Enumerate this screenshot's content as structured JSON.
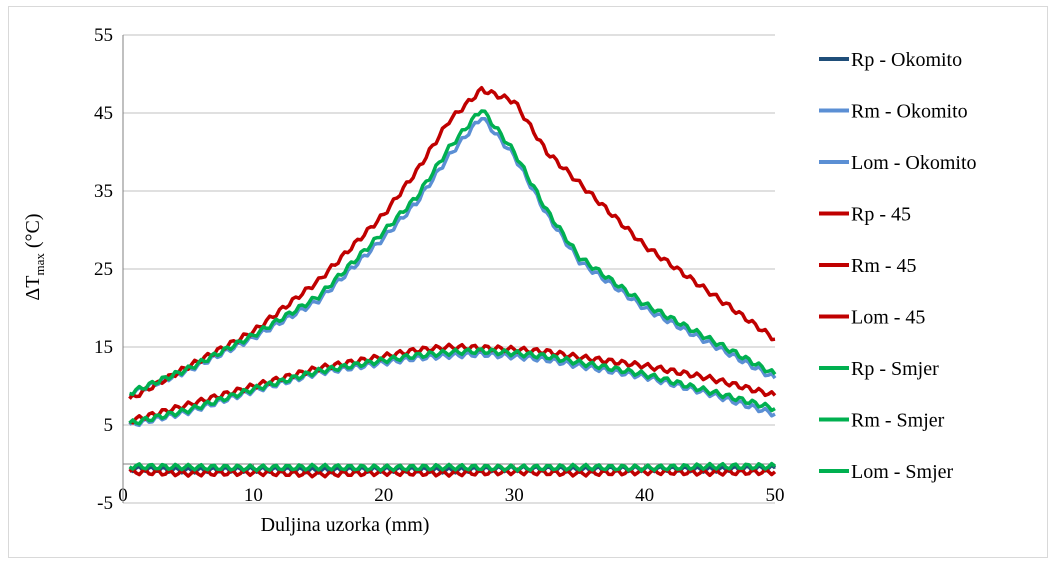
{
  "chart_data": {
    "type": "line",
    "xlabel": "Duljina uzorka (mm)",
    "ylabel": {
      "prefix": "ΔT",
      "sub": "max",
      "suffix": " (°C)"
    },
    "xlim": [
      0,
      50
    ],
    "ylim": [
      -5,
      55
    ],
    "xticks": [
      0,
      10,
      20,
      30,
      40,
      50
    ],
    "yticks": [
      -5,
      5,
      15,
      25,
      35,
      45,
      55
    ],
    "grid": "horizontal",
    "legend_position": "right",
    "series": [
      {
        "name": "Rp - Okomito",
        "color": "#1f4e79",
        "points": [
          [
            0.5,
            -0.6
          ],
          [
            5,
            -0.8
          ],
          [
            10,
            -0.7
          ],
          [
            15,
            -0.8
          ],
          [
            20,
            -0.7
          ],
          [
            25,
            -0.8
          ],
          [
            30,
            -0.6
          ],
          [
            35,
            -0.7
          ],
          [
            40,
            -0.6
          ],
          [
            45,
            -0.7
          ],
          [
            50,
            -0.5
          ]
        ]
      },
      {
        "name": "Rm - Okomito",
        "color": "#5b8fd4",
        "points": [
          [
            0.5,
            5.0
          ],
          [
            5,
            6.7
          ],
          [
            10,
            9.4
          ],
          [
            15,
            11.7
          ],
          [
            20,
            13.0
          ],
          [
            22.5,
            13.6
          ],
          [
            25,
            13.9
          ],
          [
            27.5,
            14.1
          ],
          [
            30,
            13.8
          ],
          [
            32.5,
            13.4
          ],
          [
            35,
            12.6
          ],
          [
            40,
            11.2
          ],
          [
            45,
            9.0
          ],
          [
            50,
            6.4
          ]
        ]
      },
      {
        "name": "Lom - Okomito",
        "color": "#5b8fd4",
        "points": [
          [
            0.5,
            9.0
          ],
          [
            5,
            12.0
          ],
          [
            10,
            16.2
          ],
          [
            15,
            21.0
          ],
          [
            20,
            29.0
          ],
          [
            22.5,
            33.5
          ],
          [
            25,
            39.5
          ],
          [
            27.5,
            44.5
          ],
          [
            30,
            39.5
          ],
          [
            32.5,
            32.0
          ],
          [
            35,
            26.0
          ],
          [
            40,
            20.0
          ],
          [
            45,
            15.5
          ],
          [
            50,
            11.0
          ]
        ]
      },
      {
        "name": "Rp - 45",
        "color": "#c00000",
        "points": [
          [
            0.5,
            -1.0
          ],
          [
            5,
            -1.2
          ],
          [
            10,
            -1.1
          ],
          [
            15,
            -1.3
          ],
          [
            20,
            -1.1
          ],
          [
            25,
            -1.2
          ],
          [
            30,
            -1.0
          ],
          [
            35,
            -1.2
          ],
          [
            40,
            -1.0
          ],
          [
            45,
            -1.1
          ],
          [
            50,
            -1.0
          ]
        ]
      },
      {
        "name": "Rm - 45",
        "color": "#c00000",
        "points": [
          [
            0.5,
            5.5
          ],
          [
            5,
            7.6
          ],
          [
            10,
            10.0
          ],
          [
            15,
            12.3
          ],
          [
            20,
            13.8
          ],
          [
            22.5,
            14.6
          ],
          [
            25,
            15.0
          ],
          [
            27.5,
            14.9
          ],
          [
            30,
            14.7
          ],
          [
            32.5,
            14.4
          ],
          [
            35,
            13.7
          ],
          [
            40,
            12.6
          ],
          [
            45,
            11.0
          ],
          [
            50,
            8.8
          ]
        ]
      },
      {
        "name": "Lom - 45",
        "color": "#c00000",
        "points": [
          [
            0.5,
            8.3
          ],
          [
            5,
            12.5
          ],
          [
            10,
            17.0
          ],
          [
            15,
            23.5
          ],
          [
            20,
            32.0
          ],
          [
            22.5,
            37.5
          ],
          [
            25,
            44.0
          ],
          [
            27.5,
            48.0
          ],
          [
            30,
            46.5
          ],
          [
            32.5,
            40.0
          ],
          [
            35,
            36.0
          ],
          [
            40,
            28.0
          ],
          [
            45,
            22.0
          ],
          [
            50,
            16.0
          ]
        ]
      },
      {
        "name": "Rp - Smjer",
        "color": "#00b050",
        "points": [
          [
            0.5,
            -0.3
          ],
          [
            5,
            -0.4
          ],
          [
            10,
            -0.5
          ],
          [
            15,
            -0.4
          ],
          [
            20,
            -0.5
          ],
          [
            25,
            -0.4
          ],
          [
            30,
            -0.5
          ],
          [
            35,
            -0.4
          ],
          [
            40,
            -0.5
          ],
          [
            45,
            -0.3
          ],
          [
            50,
            -0.3
          ]
        ]
      },
      {
        "name": "Rm - Smjer",
        "color": "#00b050",
        "points": [
          [
            0.5,
            5.2
          ],
          [
            5,
            6.9
          ],
          [
            10,
            9.6
          ],
          [
            15,
            11.9
          ],
          [
            20,
            13.3
          ],
          [
            22.5,
            13.9
          ],
          [
            25,
            14.3
          ],
          [
            27.5,
            14.5
          ],
          [
            30,
            14.2
          ],
          [
            32.5,
            13.8
          ],
          [
            35,
            13.0
          ],
          [
            40,
            11.5
          ],
          [
            45,
            9.3
          ],
          [
            50,
            7.1
          ]
        ]
      },
      {
        "name": "Lom - Smjer",
        "color": "#00b050",
        "points": [
          [
            0.5,
            9.1
          ],
          [
            5,
            12.2
          ],
          [
            10,
            16.5
          ],
          [
            15,
            21.5
          ],
          [
            20,
            29.8
          ],
          [
            22.5,
            34.2
          ],
          [
            25,
            40.5
          ],
          [
            27.5,
            45.5
          ],
          [
            30,
            40.0
          ],
          [
            32.5,
            32.5
          ],
          [
            35,
            26.5
          ],
          [
            40,
            20.5
          ],
          [
            45,
            16.0
          ],
          [
            50,
            11.5
          ]
        ]
      }
    ]
  }
}
